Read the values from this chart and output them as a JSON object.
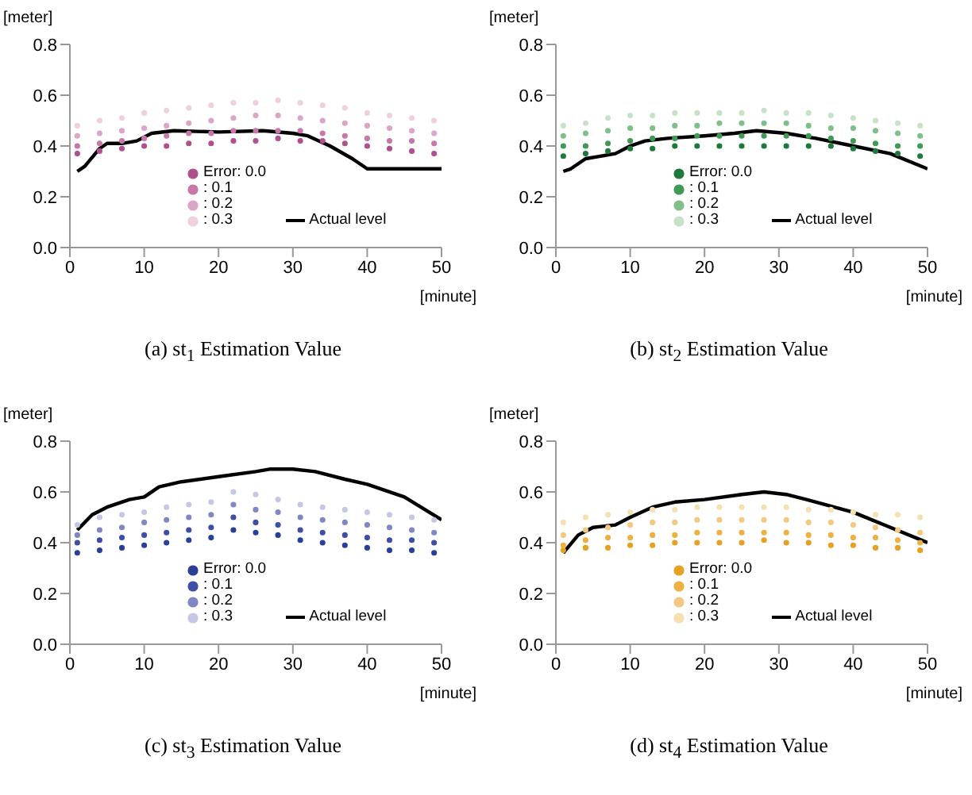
{
  "chart_data": [
    {
      "type": "scatter",
      "title": "(a) st$_{1}$ Estimation Value",
      "xlabel": "[minute]",
      "ylabel": "[meter]",
      "xlim": [
        0,
        50
      ],
      "ylim": [
        0,
        0.8
      ],
      "xticks": [
        0,
        10,
        20,
        30,
        40,
        50
      ],
      "yticks": [
        {
          "value": 0,
          "label": "0.0"
        },
        {
          "value": 0.2,
          "label": "0.2"
        },
        {
          "value": 0.4,
          "label": "0.4"
        },
        {
          "value": 0.6,
          "label": "0.6"
        },
        {
          "value": 0.8,
          "label": "0.8"
        }
      ],
      "grid": false,
      "legend": "bottom",
      "marker": "circle",
      "x": [
        1,
        4,
        7,
        10,
        13,
        16,
        19,
        22,
        25,
        28,
        31,
        34,
        37,
        40,
        43,
        46,
        49
      ],
      "series": [
        {
          "name": "Error: 0.0",
          "color": "#b0508f",
          "values": [
            0.37,
            0.38,
            0.39,
            0.4,
            0.4,
            0.41,
            0.41,
            0.42,
            0.42,
            0.43,
            0.42,
            0.42,
            0.41,
            0.4,
            0.39,
            0.38,
            0.37
          ]
        },
        {
          "name": ": 0.1",
          "color": "#c878a8",
          "values": [
            0.4,
            0.41,
            0.42,
            0.43,
            0.44,
            0.45,
            0.45,
            0.46,
            0.46,
            0.46,
            0.46,
            0.45,
            0.44,
            0.43,
            0.42,
            0.42,
            0.41
          ]
        },
        {
          "name": ": 0.2",
          "color": "#dba5c8",
          "values": [
            0.44,
            0.45,
            0.46,
            0.47,
            0.48,
            0.49,
            0.5,
            0.51,
            0.52,
            0.52,
            0.51,
            0.5,
            0.49,
            0.48,
            0.47,
            0.46,
            0.45
          ]
        },
        {
          "name": ": 0.3",
          "color": "#f0d0e0",
          "values": [
            0.48,
            0.5,
            0.51,
            0.53,
            0.54,
            0.55,
            0.56,
            0.57,
            0.57,
            0.58,
            0.57,
            0.56,
            0.55,
            0.53,
            0.52,
            0.51,
            0.5
          ]
        },
        {
          "name": "Actual level",
          "type": "line",
          "color": "#000000",
          "marker": "none",
          "x": [
            1,
            2,
            4,
            5,
            7,
            9,
            11,
            14,
            20,
            26,
            30,
            32,
            35,
            38,
            40,
            50
          ],
          "values": [
            0.3,
            0.32,
            0.39,
            0.41,
            0.41,
            0.42,
            0.45,
            0.46,
            0.455,
            0.46,
            0.45,
            0.44,
            0.4,
            0.35,
            0.31,
            0.31
          ]
        }
      ]
    },
    {
      "type": "scatter",
      "title": "(b) st$_{2}$ Estimation Value",
      "xlabel": "[minute]",
      "ylabel": "[meter]",
      "xlim": [
        0,
        50
      ],
      "ylim": [
        0,
        0.8
      ],
      "xticks": [
        0,
        10,
        20,
        30,
        40,
        50
      ],
      "yticks": [
        {
          "value": 0,
          "label": "0.0"
        },
        {
          "value": 0.2,
          "label": "0.2"
        },
        {
          "value": 0.4,
          "label": "0.4"
        },
        {
          "value": 0.6,
          "label": "0.6"
        },
        {
          "value": 0.8,
          "label": "0.8"
        }
      ],
      "grid": false,
      "legend": "bottom",
      "marker": "circle",
      "x": [
        1,
        4,
        7,
        10,
        13,
        16,
        19,
        22,
        25,
        28,
        31,
        34,
        37,
        40,
        43,
        46,
        49
      ],
      "series": [
        {
          "name": "Error: 0.0",
          "color": "#1e7a3c",
          "values": [
            0.36,
            0.37,
            0.38,
            0.39,
            0.39,
            0.4,
            0.4,
            0.4,
            0.4,
            0.4,
            0.4,
            0.4,
            0.4,
            0.39,
            0.38,
            0.37,
            0.36
          ]
        },
        {
          "name": ": 0.1",
          "color": "#3f9a55",
          "values": [
            0.4,
            0.4,
            0.41,
            0.42,
            0.43,
            0.43,
            0.44,
            0.44,
            0.44,
            0.44,
            0.44,
            0.44,
            0.43,
            0.42,
            0.41,
            0.4,
            0.4
          ]
        },
        {
          "name": ": 0.2",
          "color": "#7fbf8a",
          "values": [
            0.44,
            0.45,
            0.46,
            0.47,
            0.47,
            0.48,
            0.48,
            0.49,
            0.49,
            0.49,
            0.49,
            0.48,
            0.47,
            0.47,
            0.46,
            0.45,
            0.44
          ]
        },
        {
          "name": ": 0.3",
          "color": "#c8e2c8",
          "values": [
            0.48,
            0.49,
            0.51,
            0.52,
            0.52,
            0.53,
            0.53,
            0.53,
            0.53,
            0.54,
            0.53,
            0.53,
            0.52,
            0.51,
            0.5,
            0.49,
            0.48
          ]
        },
        {
          "name": "Actual level",
          "type": "line",
          "color": "#000000",
          "marker": "none",
          "x": [
            1,
            2,
            4,
            6,
            8,
            10,
            12,
            15,
            20,
            24,
            27,
            31,
            35,
            40,
            45,
            50
          ],
          "values": [
            0.3,
            0.31,
            0.35,
            0.36,
            0.37,
            0.4,
            0.42,
            0.43,
            0.44,
            0.45,
            0.46,
            0.45,
            0.43,
            0.4,
            0.37,
            0.31
          ]
        }
      ]
    },
    {
      "type": "scatter",
      "title": "(c) st$_{3}$ Estimation Value",
      "xlabel": "[minute]",
      "ylabel": "[meter]",
      "xlim": [
        0,
        50
      ],
      "ylim": [
        0,
        0.8
      ],
      "xticks": [
        0,
        10,
        20,
        30,
        40,
        50
      ],
      "yticks": [
        {
          "value": 0,
          "label": "0.0"
        },
        {
          "value": 0.2,
          "label": "0.2"
        },
        {
          "value": 0.4,
          "label": "0.4"
        },
        {
          "value": 0.6,
          "label": "0.6"
        },
        {
          "value": 0.8,
          "label": "0.8"
        }
      ],
      "grid": false,
      "legend": "bottom",
      "marker": "circle",
      "x": [
        1,
        4,
        7,
        10,
        13,
        16,
        19,
        22,
        25,
        28,
        31,
        34,
        37,
        40,
        43,
        46,
        49
      ],
      "series": [
        {
          "name": "Error: 0.0",
          "color": "#2a3f98",
          "values": [
            0.36,
            0.37,
            0.38,
            0.39,
            0.4,
            0.41,
            0.42,
            0.45,
            0.44,
            0.43,
            0.41,
            0.4,
            0.39,
            0.38,
            0.37,
            0.37,
            0.36
          ]
        },
        {
          "name": ": 0.1",
          "color": "#3c4ea6",
          "values": [
            0.4,
            0.41,
            0.42,
            0.43,
            0.44,
            0.45,
            0.46,
            0.5,
            0.48,
            0.47,
            0.45,
            0.44,
            0.43,
            0.42,
            0.41,
            0.41,
            0.4
          ]
        },
        {
          "name": ": 0.2",
          "color": "#8088c4",
          "values": [
            0.43,
            0.45,
            0.46,
            0.48,
            0.49,
            0.5,
            0.51,
            0.55,
            0.53,
            0.52,
            0.5,
            0.49,
            0.48,
            0.47,
            0.46,
            0.45,
            0.44
          ]
        },
        {
          "name": ": 0.3",
          "color": "#c4c8e4",
          "values": [
            0.47,
            0.5,
            0.51,
            0.52,
            0.54,
            0.55,
            0.56,
            0.6,
            0.59,
            0.57,
            0.55,
            0.54,
            0.53,
            0.52,
            0.51,
            0.5,
            0.49
          ]
        },
        {
          "name": "Actual level",
          "type": "line",
          "color": "#000000",
          "marker": "none",
          "x": [
            1,
            3,
            5,
            8,
            10,
            12,
            15,
            20,
            25,
            27,
            30,
            33,
            37,
            40,
            45,
            50
          ],
          "values": [
            0.45,
            0.51,
            0.54,
            0.57,
            0.58,
            0.62,
            0.64,
            0.66,
            0.68,
            0.69,
            0.69,
            0.68,
            0.65,
            0.63,
            0.58,
            0.49
          ]
        }
      ]
    },
    {
      "type": "scatter",
      "title": "(d) st$_{4}$ Estimation Value",
      "xlabel": "[minute]",
      "ylabel": "[meter]",
      "xlim": [
        0,
        50
      ],
      "ylim": [
        0,
        0.8
      ],
      "xticks": [
        0,
        10,
        20,
        30,
        40,
        50
      ],
      "yticks": [
        {
          "value": 0,
          "label": "0.0"
        },
        {
          "value": 0.2,
          "label": "0.2"
        },
        {
          "value": 0.4,
          "label": "0.4"
        },
        {
          "value": 0.6,
          "label": "0.6"
        },
        {
          "value": 0.8,
          "label": "0.8"
        }
      ],
      "grid": false,
      "legend": "bottom",
      "marker": "circle",
      "x": [
        1,
        4,
        7,
        10,
        13,
        16,
        19,
        22,
        25,
        28,
        31,
        34,
        37,
        40,
        43,
        46,
        49
      ],
      "series": [
        {
          "name": "Error: 0.0",
          "color": "#e8a020",
          "values": [
            0.37,
            0.38,
            0.38,
            0.39,
            0.39,
            0.4,
            0.4,
            0.4,
            0.4,
            0.41,
            0.4,
            0.4,
            0.39,
            0.39,
            0.38,
            0.38,
            0.37
          ]
        },
        {
          "name": ": 0.1",
          "color": "#eeb040",
          "values": [
            0.39,
            0.41,
            0.42,
            0.42,
            0.43,
            0.43,
            0.44,
            0.44,
            0.44,
            0.44,
            0.44,
            0.43,
            0.43,
            0.42,
            0.42,
            0.41,
            0.4
          ]
        },
        {
          "name": ": 0.2",
          "color": "#f3c880",
          "values": [
            0.43,
            0.45,
            0.46,
            0.47,
            0.48,
            0.48,
            0.49,
            0.49,
            0.49,
            0.49,
            0.49,
            0.48,
            0.48,
            0.47,
            0.46,
            0.45,
            0.44
          ]
        },
        {
          "name": ": 0.3",
          "color": "#f6e0b0",
          "values": [
            0.48,
            0.5,
            0.51,
            0.52,
            0.53,
            0.53,
            0.54,
            0.54,
            0.54,
            0.54,
            0.54,
            0.53,
            0.53,
            0.52,
            0.51,
            0.51,
            0.5
          ]
        },
        {
          "name": "Actual level",
          "type": "line",
          "color": "#000000",
          "marker": "none",
          "x": [
            1,
            3,
            5,
            8,
            10,
            13,
            16,
            20,
            25,
            28,
            31,
            35,
            40,
            45,
            50
          ],
          "values": [
            0.36,
            0.43,
            0.46,
            0.47,
            0.5,
            0.54,
            0.56,
            0.57,
            0.59,
            0.6,
            0.59,
            0.56,
            0.52,
            0.46,
            0.4
          ]
        }
      ]
    }
  ]
}
